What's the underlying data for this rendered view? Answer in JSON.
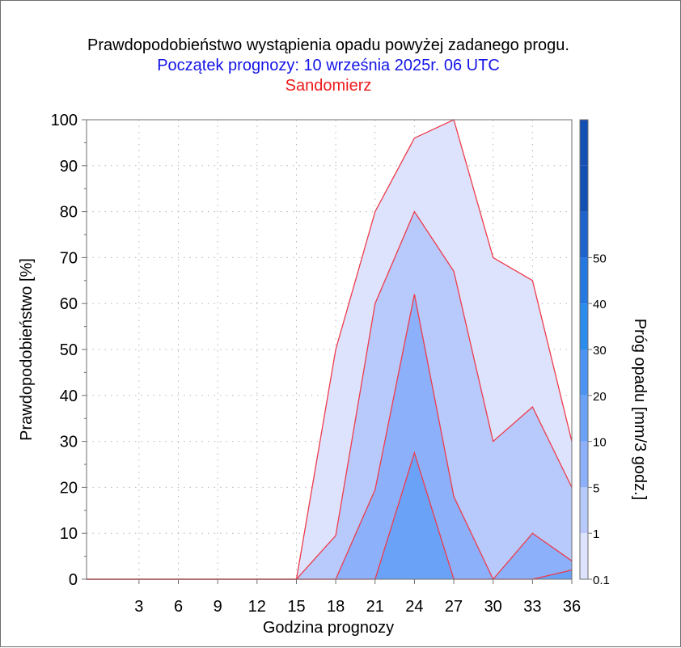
{
  "chart_data": {
    "type": "area",
    "title": "Prawdopodobieństwo wystąpienia opadu powyżej zadanego progu.",
    "subtitle": "Początek prognozy: 10 września 2025r. 06 UTC",
    "location": "Sandomierz",
    "xlabel": "Godzina prognozy",
    "ylabel": "Prawdopodobieństwo [%]",
    "xlim": [
      -1,
      36
    ],
    "ylim": [
      0,
      100
    ],
    "x_ticks": [
      "3",
      "6",
      "9",
      "12",
      "15",
      "18",
      "21",
      "24",
      "27",
      "30",
      "33",
      "36"
    ],
    "y_ticks": [
      "0",
      "10",
      "20",
      "30",
      "40",
      "50",
      "60",
      "70",
      "80",
      "90",
      "100"
    ],
    "grid": true,
    "x": [
      -1,
      3,
      6,
      9,
      12,
      15,
      18,
      21,
      24,
      27,
      30,
      33,
      36
    ],
    "series": [
      {
        "threshold": 0.1,
        "color": "#dde3fd",
        "values": [
          0,
          0,
          0,
          0,
          0,
          0,
          50,
          80,
          96,
          100,
          70,
          65,
          30
        ]
      },
      {
        "threshold": 1,
        "color": "#b8cafc",
        "values": [
          0,
          0,
          0,
          0,
          0,
          0,
          9.5,
          60,
          80,
          67,
          30,
          37.5,
          20
        ]
      },
      {
        "threshold": 5,
        "color": "#8cb0fa",
        "values": [
          0,
          0,
          0,
          0,
          0,
          0,
          0,
          19.5,
          62,
          18,
          0,
          10,
          4
        ]
      },
      {
        "threshold": 10,
        "color": "#6aa2f8",
        "values": [
          0,
          0,
          0,
          0,
          0,
          0,
          0,
          0,
          27.5,
          0,
          0,
          0,
          2
        ]
      }
    ],
    "colorbar": {
      "label": "Próg opadu [mm/3 godz.]",
      "tick_labels": [
        "0.1",
        "1",
        "5",
        "10",
        "20",
        "30",
        "40",
        "50"
      ],
      "band_colors": [
        "#dde3fd",
        "#b8cafc",
        "#8cb0fa",
        "#6aa2f8",
        "#4c94f2",
        "#2b8cec",
        "#2478e0",
        "#1c63cc",
        "#144fb4"
      ]
    },
    "title_color": "#000000",
    "subtitle_color": "#1414e6",
    "location_color": "#ee1c1c",
    "line_color": "#ef3b4a"
  }
}
